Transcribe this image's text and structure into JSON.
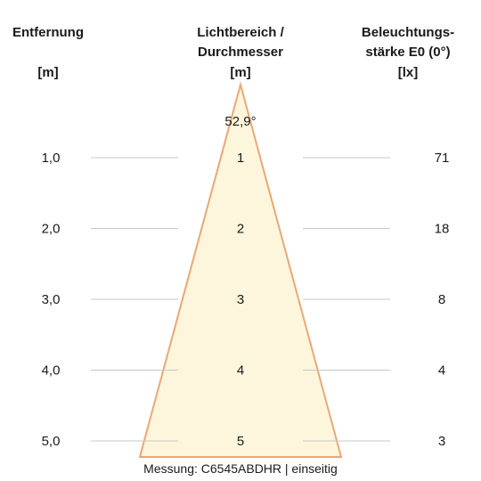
{
  "headers": {
    "distance": {
      "line1": "Entfernung",
      "unit": "[m]"
    },
    "diameter": {
      "line1": "Lichtbereich /",
      "line2": "Durchmesser",
      "unit": "[m]"
    },
    "illuminance": {
      "line1": "Beleuchtungs-",
      "line2": "stärke E0 (0°)",
      "unit": "[lx]"
    }
  },
  "beam_angle": "52,9°",
  "rows": [
    {
      "distance": "1,0",
      "diameter": "1",
      "illuminance": "71"
    },
    {
      "distance": "2,0",
      "diameter": "2",
      "illuminance": "18"
    },
    {
      "distance": "3,0",
      "diameter": "3",
      "illuminance": "8"
    },
    {
      "distance": "4,0",
      "diameter": "4",
      "illuminance": "4"
    },
    {
      "distance": "5,0",
      "diameter": "5",
      "illuminance": "3"
    }
  ],
  "footer": "Messung: C6545ABDHR | einseitig",
  "colors": {
    "cone_fill": "#fdf6dc",
    "cone_stroke": "#e8a878",
    "guide_line": "#c8c8c8"
  }
}
